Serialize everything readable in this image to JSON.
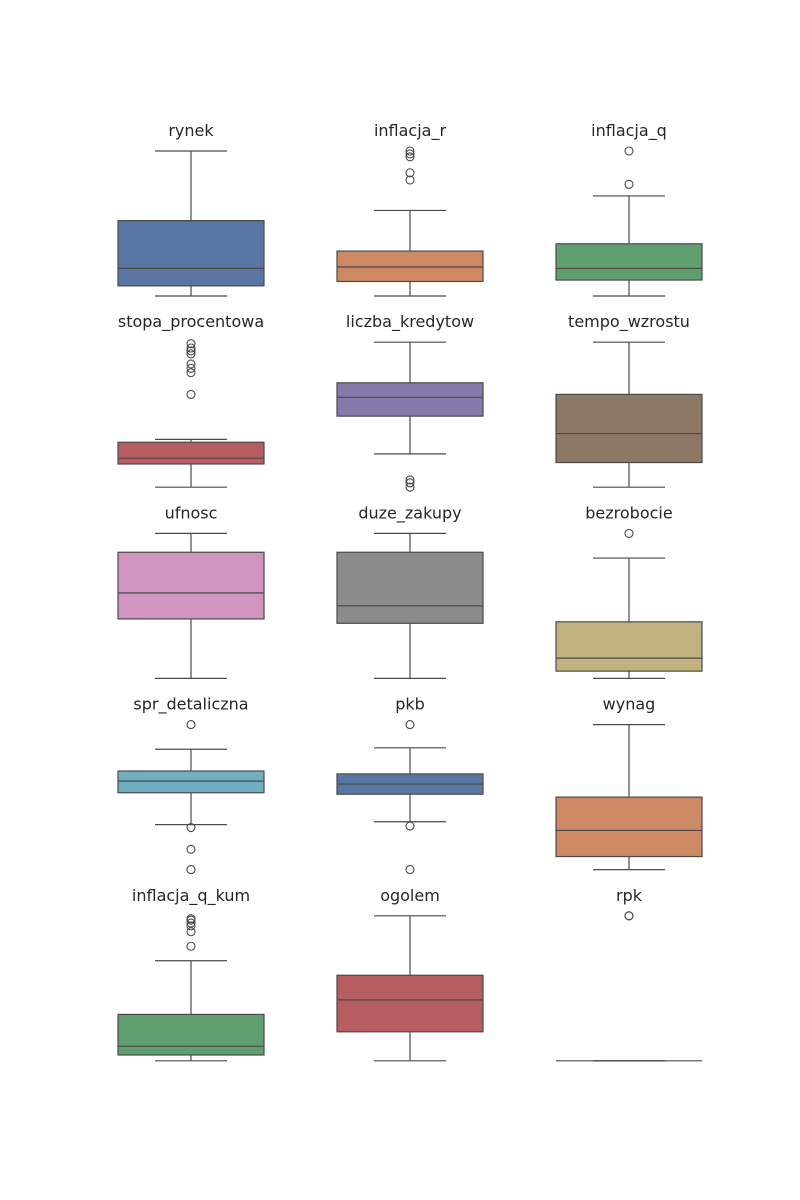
{
  "chart_data": {
    "type": "boxplot",
    "value_scale": "each panel normalized: lower whisker = 0, upper whisker or top outlier = 1",
    "panels": [
      {
        "title": "rynek",
        "color": "#5875a4",
        "whisker_low": 0.0,
        "q1": 0.07,
        "median": 0.19,
        "q3": 0.52,
        "whisker_high": 1.0,
        "outliers": []
      },
      {
        "title": "inflacja_r",
        "color": "#cc8963",
        "whisker_low": 0.0,
        "q1": 0.1,
        "median": 0.2,
        "q3": 0.31,
        "whisker_high": 0.59,
        "outliers": [
          0.8,
          0.85,
          0.96,
          0.98,
          1.0
        ]
      },
      {
        "title": "inflacja_q",
        "color": "#5f9e6e",
        "whisker_low": 0.0,
        "q1": 0.11,
        "median": 0.19,
        "q3": 0.36,
        "whisker_high": 0.69,
        "outliers": [
          0.77,
          1.0
        ]
      },
      {
        "title": "stopa_procentowa",
        "color": "#b55d60",
        "whisker_low": 0.0,
        "q1": 0.16,
        "median": 0.2,
        "q3": 0.31,
        "whisker_high": 0.33,
        "outliers": [
          0.64,
          0.79,
          0.82,
          0.85,
          0.92,
          0.94,
          0.96,
          0.99
        ]
      },
      {
        "title": "liczba_kredytow",
        "color": "#857aab",
        "whisker_low": 0.23,
        "q1": 0.49,
        "median": 0.62,
        "q3": 0.72,
        "whisker_high": 1.0,
        "outliers": [
          0.0,
          0.03,
          0.05
        ]
      },
      {
        "title": "tempo_wzrostu",
        "color": "#8d7866",
        "whisker_low": 0.0,
        "q1": 0.17,
        "median": 0.37,
        "q3": 0.64,
        "whisker_high": 1.0,
        "outliers": []
      },
      {
        "title": "ufnosc",
        "color": "#d095bf",
        "whisker_low": 0.0,
        "q1": 0.41,
        "median": 0.59,
        "q3": 0.87,
        "whisker_high": 1.0,
        "outliers": []
      },
      {
        "title": "duze_zakupy",
        "color": "#8c8c8c",
        "whisker_low": 0.0,
        "q1": 0.38,
        "median": 0.5,
        "q3": 0.87,
        "whisker_high": 1.0,
        "outliers": []
      },
      {
        "title": "bezrobocie",
        "color": "#c1b37f",
        "whisker_low": 0.0,
        "q1": 0.05,
        "median": 0.14,
        "q3": 0.39,
        "whisker_high": 0.83,
        "outliers": [
          1.0
        ]
      },
      {
        "title": "spr_detaliczna",
        "color": "#71aec0",
        "whisker_low": 0.31,
        "q1": 0.53,
        "median": 0.61,
        "q3": 0.68,
        "whisker_high": 0.83,
        "outliers": [
          0.0,
          0.14,
          0.29,
          1.0
        ]
      },
      {
        "title": "pkb",
        "color": "#5875a4",
        "whisker_low": 0.33,
        "q1": 0.52,
        "median": 0.59,
        "q3": 0.66,
        "whisker_high": 0.84,
        "outliers": [
          0.0,
          0.3,
          1.0
        ]
      },
      {
        "title": "wynag",
        "color": "#cc8963",
        "whisker_low": 0.0,
        "q1": 0.09,
        "median": 0.27,
        "q3": 0.5,
        "whisker_high": 1.0,
        "outliers": []
      },
      {
        "title": "inflacja_q_kum",
        "color": "#5f9e6e",
        "whisker_low": 0.0,
        "q1": 0.04,
        "median": 0.1,
        "q3": 0.32,
        "whisker_high": 0.69,
        "outliers": [
          0.79,
          0.89,
          0.93,
          0.95,
          0.97,
          0.98
        ]
      },
      {
        "title": "ogolem",
        "color": "#b55d60",
        "whisker_low": 0.0,
        "q1": 0.2,
        "median": 0.42,
        "q3": 0.59,
        "whisker_high": 1.0,
        "outliers": []
      },
      {
        "title": "rpk",
        "color": "#8c8c8c",
        "whisker_low": 0.0,
        "q1": 0.0,
        "median": 0.0,
        "q3": 0.0,
        "whisker_high": 0.0,
        "outliers": [
          1.0,
          1.0
        ]
      }
    ],
    "grid": false,
    "layout": "5 rows x 3 columns"
  }
}
